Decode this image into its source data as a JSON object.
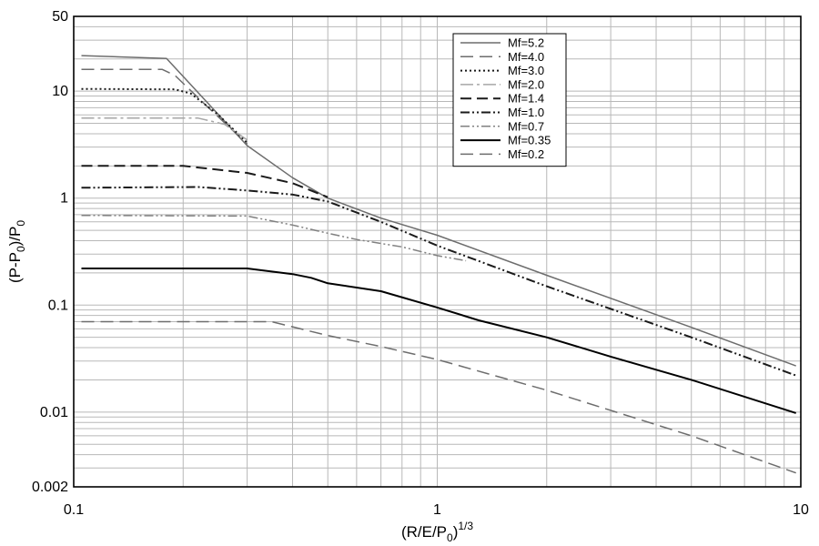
{
  "chart_data": {
    "type": "line",
    "x_scale": "log",
    "y_scale": "log",
    "xlim": [
      0.1,
      10
    ],
    "ylim": [
      0.002,
      50
    ],
    "grid": true,
    "legend_placement": "top-center",
    "xlabel": {
      "base": "(R/E/P",
      "sub": "0",
      "close": ")",
      "sup": "1/3"
    },
    "ylabel": {
      "base": "(P-P",
      "sub": "0",
      "mid": ")/P",
      "sub2": "0"
    },
    "x_tick_labels": [
      {
        "value": 0.1,
        "label": "0.1"
      },
      {
        "value": 1,
        "label": "1"
      },
      {
        "value": 10,
        "label": "10"
      }
    ],
    "y_tick_labels": [
      {
        "value": 0.002,
        "label": "0.002"
      },
      {
        "value": 0.01,
        "label": "0.01"
      },
      {
        "value": 0.1,
        "label": "0.1"
      },
      {
        "value": 1,
        "label": "1"
      },
      {
        "value": 10,
        "label": "10"
      },
      {
        "value": 50,
        "label": "50"
      }
    ],
    "series": [
      {
        "name": "Mf=5.2",
        "color": "#6d6d6d",
        "dash": "",
        "width": 1.5,
        "points": [
          [
            0.105,
            21.5
          ],
          [
            0.18,
            20.2
          ],
          [
            0.3,
            3.1
          ],
          [
            0.4,
            1.55
          ],
          [
            0.5,
            1.0
          ],
          [
            0.7,
            0.65
          ],
          [
            1.0,
            0.45
          ],
          [
            2.0,
            0.19
          ],
          [
            5.0,
            0.062
          ],
          [
            9.7,
            0.027
          ]
        ]
      },
      {
        "name": "Mf=4.0",
        "color": "#6d6d6d",
        "dash": "14 7",
        "width": 1.5,
        "points": [
          [
            0.105,
            16.0
          ],
          [
            0.175,
            16.0
          ],
          [
            0.19,
            14.0
          ],
          [
            0.23,
            7.5
          ],
          [
            0.28,
            4.0
          ],
          [
            0.3,
            3.2
          ]
        ]
      },
      {
        "name": "Mf=3.0",
        "color": "#1a1a1a",
        "dash": "2 3",
        "width": 2,
        "points": [
          [
            0.105,
            10.5
          ],
          [
            0.19,
            10.4
          ],
          [
            0.21,
            9.5
          ],
          [
            0.25,
            6.0
          ],
          [
            0.3,
            3.3
          ]
        ]
      },
      {
        "name": "Mf=2.0",
        "color": "#a6a6a6",
        "dash": "14 4 3 4",
        "width": 1.5,
        "points": [
          [
            0.105,
            5.6
          ],
          [
            0.22,
            5.6
          ],
          [
            0.26,
            4.9
          ],
          [
            0.3,
            3.5
          ]
        ]
      },
      {
        "name": "Mf=1.4",
        "color": "#1a1a1a",
        "dash": "12 6",
        "width": 2,
        "points": [
          [
            0.105,
            2.0
          ],
          [
            0.2,
            2.0
          ],
          [
            0.3,
            1.72
          ],
          [
            0.4,
            1.38
          ],
          [
            0.5,
            1.02
          ]
        ]
      },
      {
        "name": "Mf=1.0",
        "color": "#1a1a1a",
        "dash": "10 3 2 3 2 3",
        "width": 2,
        "points": [
          [
            0.105,
            1.25
          ],
          [
            0.22,
            1.27
          ],
          [
            0.3,
            1.18
          ],
          [
            0.4,
            1.08
          ],
          [
            0.5,
            0.93
          ],
          [
            0.7,
            0.6
          ],
          [
            1.0,
            0.36
          ],
          [
            2.0,
            0.15
          ],
          [
            5.0,
            0.05
          ],
          [
            9.7,
            0.022
          ]
        ]
      },
      {
        "name": "Mf=0.7",
        "color": "#808080",
        "dash": "10 3 2 3 2 3",
        "width": 1.5,
        "points": [
          [
            0.105,
            0.69
          ],
          [
            0.3,
            0.68
          ],
          [
            0.4,
            0.56
          ],
          [
            0.5,
            0.47
          ],
          [
            0.6,
            0.41
          ],
          [
            0.8,
            0.35
          ],
          [
            1.0,
            0.29
          ],
          [
            1.2,
            0.26
          ]
        ]
      },
      {
        "name": "Mf=0.35",
        "color": "#000000",
        "dash": "",
        "width": 2,
        "points": [
          [
            0.105,
            0.22
          ],
          [
            0.3,
            0.22
          ],
          [
            0.4,
            0.195
          ],
          [
            0.45,
            0.18
          ],
          [
            0.5,
            0.16
          ],
          [
            0.7,
            0.135
          ],
          [
            1.0,
            0.095
          ],
          [
            1.3,
            0.072
          ],
          [
            2.0,
            0.05
          ],
          [
            3.0,
            0.033
          ],
          [
            5.0,
            0.02
          ],
          [
            9.7,
            0.0098
          ]
        ]
      },
      {
        "name": "Mf=0.2",
        "color": "#6d6d6d",
        "dash": "14 7",
        "width": 1.5,
        "points": [
          [
            0.105,
            0.07
          ],
          [
            0.35,
            0.07
          ],
          [
            0.5,
            0.052
          ],
          [
            0.7,
            0.041
          ],
          [
            1.0,
            0.031
          ],
          [
            2.0,
            0.016
          ],
          [
            5.0,
            0.006
          ],
          [
            9.7,
            0.0027
          ]
        ]
      }
    ]
  }
}
